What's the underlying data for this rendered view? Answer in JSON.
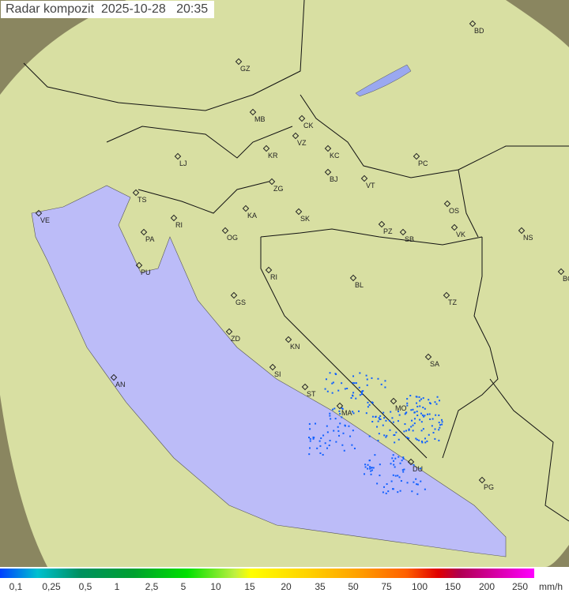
{
  "title": {
    "label": "Radar kompozit",
    "date": "2025-10-28",
    "time": "20:35"
  },
  "colors": {
    "sea": "#bcbcf8",
    "land": "#d8e0a0",
    "outside": "#8a8660",
    "radar_echo": "#1060ff"
  },
  "cities": [
    "GZ",
    "BD",
    "MB",
    "CK",
    "VZ",
    "KR",
    "KC",
    "LJ",
    "ZG",
    "BJ",
    "VT",
    "PC",
    "TS",
    "VE",
    "KA",
    "SK",
    "OS",
    "RI",
    "PA",
    "OG",
    "PZ",
    "SB",
    "VK",
    "NS",
    "PU",
    "RI",
    "BL",
    "BG",
    "GS",
    "TZ",
    "ZD",
    "KN",
    "SA",
    "SI",
    "AN",
    "ST",
    "MO",
    "MA",
    "DU",
    "PG"
  ],
  "legend": {
    "values": [
      "0,1",
      "0,25",
      "0,5",
      "1",
      "2,5",
      "5",
      "10",
      "15",
      "20",
      "35",
      "50",
      "75",
      "100",
      "150",
      "200",
      "250"
    ],
    "unit": "mm/h"
  }
}
